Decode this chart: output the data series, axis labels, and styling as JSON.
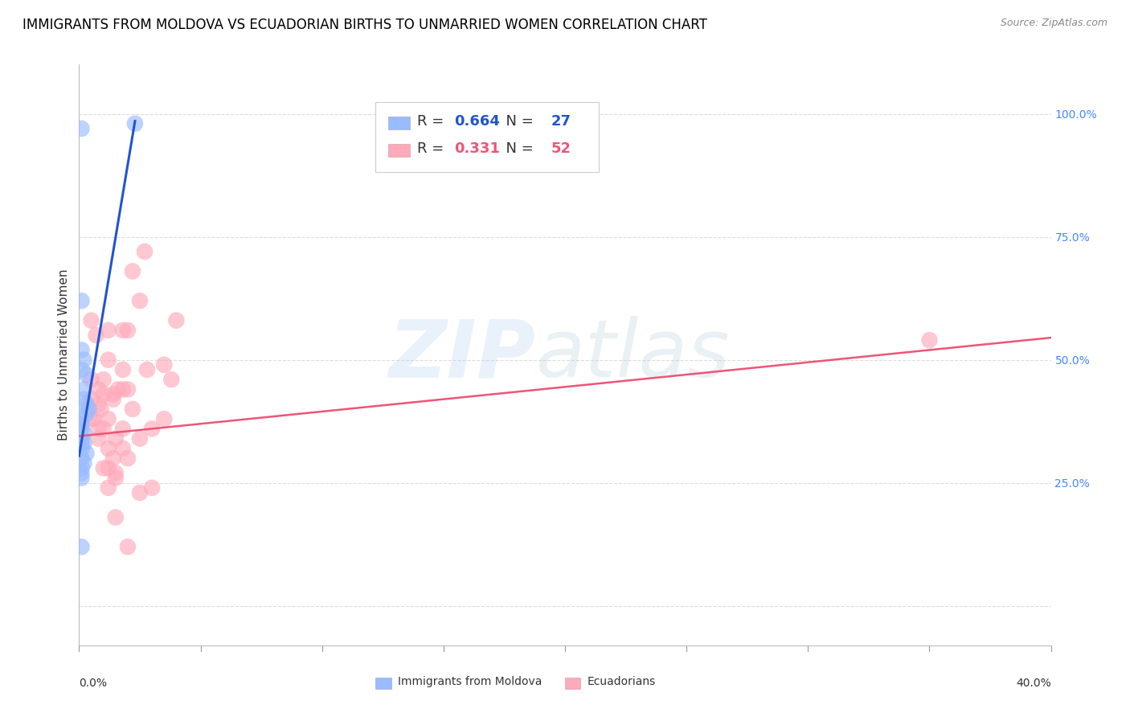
{
  "title": "IMMIGRANTS FROM MOLDOVA VS ECUADORIAN BIRTHS TO UNMARRIED WOMEN CORRELATION CHART",
  "source": "Source: ZipAtlas.com",
  "ylabel": "Births to Unmarried Women",
  "right_yticklabels": [
    "25.0%",
    "50.0%",
    "75.0%",
    "100.0%"
  ],
  "right_ytick_vals": [
    0.25,
    0.5,
    0.75,
    1.0
  ],
  "xlim": [
    0.0,
    0.4
  ],
  "ylim": [
    -0.08,
    1.1
  ],
  "watermark_zip": "ZIP",
  "watermark_atlas": "atlas",
  "legend_r1": "0.664",
  "legend_n1": "27",
  "legend_r2": "0.331",
  "legend_n2": "52",
  "blue_color": "#99BBFF",
  "pink_color": "#FFAABB",
  "blue_line_color": "#2255CC",
  "pink_line_color": "#EE5577",
  "blue_scatter_x": [
    0.001,
    0.001,
    0.001,
    0.001,
    0.001,
    0.002,
    0.002,
    0.002,
    0.002,
    0.003,
    0.003,
    0.003,
    0.003,
    0.004,
    0.001,
    0.001,
    0.001,
    0.001,
    0.002,
    0.002,
    0.001,
    0.001,
    0.001,
    0.001,
    0.001,
    0.023,
    0.001
  ],
  "blue_scatter_y": [
    0.97,
    0.38,
    0.36,
    0.34,
    0.33,
    0.5,
    0.44,
    0.42,
    0.35,
    0.47,
    0.41,
    0.39,
    0.31,
    0.4,
    0.62,
    0.52,
    0.48,
    0.3,
    0.33,
    0.29,
    0.28,
    0.27,
    0.26,
    0.37,
    0.32,
    0.98,
    0.12
  ],
  "pink_scatter_x": [
    0.005,
    0.007,
    0.005,
    0.008,
    0.01,
    0.008,
    0.006,
    0.018,
    0.012,
    0.02,
    0.018,
    0.01,
    0.008,
    0.014,
    0.016,
    0.009,
    0.005,
    0.012,
    0.01,
    0.015,
    0.012,
    0.025,
    0.028,
    0.03,
    0.035,
    0.022,
    0.027,
    0.04,
    0.018,
    0.02,
    0.012,
    0.015,
    0.022,
    0.025,
    0.015,
    0.012,
    0.02,
    0.018,
    0.014,
    0.01,
    0.035,
    0.038,
    0.015,
    0.02,
    0.025,
    0.03,
    0.018,
    0.012,
    0.008,
    0.35,
    0.005,
    0.014
  ],
  "pink_scatter_y": [
    0.46,
    0.55,
    0.58,
    0.41,
    0.43,
    0.36,
    0.38,
    0.44,
    0.56,
    0.56,
    0.48,
    0.46,
    0.44,
    0.42,
    0.44,
    0.4,
    0.42,
    0.38,
    0.36,
    0.34,
    0.32,
    0.62,
    0.48,
    0.36,
    0.38,
    0.68,
    0.72,
    0.58,
    0.32,
    0.3,
    0.28,
    0.27,
    0.4,
    0.34,
    0.26,
    0.24,
    0.44,
    0.36,
    0.3,
    0.28,
    0.49,
    0.46,
    0.18,
    0.12,
    0.23,
    0.24,
    0.56,
    0.5,
    0.34,
    0.54,
    0.38,
    0.43
  ],
  "blue_trend_x": [
    0.0,
    0.023
  ],
  "blue_trend_y": [
    0.305,
    0.985
  ],
  "pink_trend_x": [
    0.0,
    0.4
  ],
  "pink_trend_y": [
    0.345,
    0.545
  ],
  "grid_color": "#DDDDDD",
  "background_color": "#FFFFFF",
  "title_fontsize": 12,
  "source_fontsize": 9,
  "label_fontsize": 11,
  "tick_fontsize": 10,
  "legend_fontsize": 13
}
